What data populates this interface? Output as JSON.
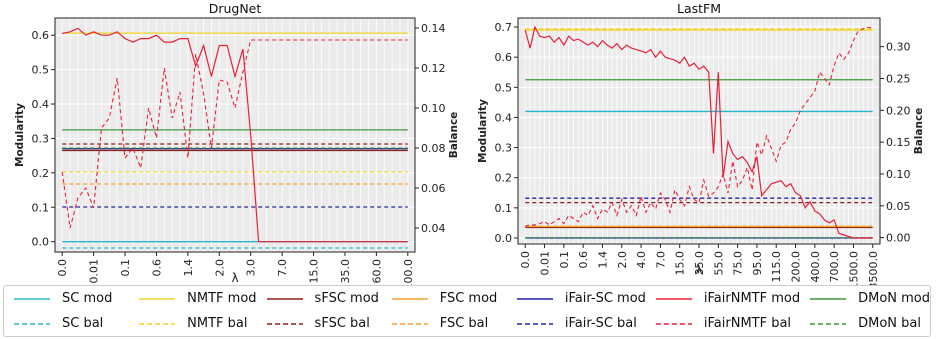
{
  "chart_data": [
    {
      "type": "line",
      "title": "DrugNet",
      "xlabel": "λ",
      "ylabel": "Modularity",
      "y2label": "Balance",
      "ylim": [
        -0.03,
        0.65
      ],
      "y2lim": [
        0.028,
        0.145
      ],
      "yticks": [
        "0.0",
        "0.1",
        "0.2",
        "0.3",
        "0.4",
        "0.5",
        "0.6"
      ],
      "y2ticks": [
        "0.04",
        "0.06",
        "0.08",
        "0.10",
        "0.12",
        "0.14"
      ],
      "xticklabels": [
        "0.0",
        "0.01",
        "0.1",
        "0.6",
        "1.4",
        "2.0",
        "3.0",
        "7.0",
        "15.0",
        "35.0",
        "60.0",
        "100.0"
      ],
      "n_points": 45,
      "grid": true,
      "modularity_const": [
        {
          "name": "SC mod",
          "value": 0.0
        },
        {
          "name": "NMTF mod",
          "value": 0.606
        },
        {
          "name": "sFSC mod",
          "value": 0.265
        },
        {
          "name": "FSC mod",
          "value": 0.27
        },
        {
          "name": "iFair-SC mod",
          "value": 0.27
        },
        {
          "name": "DMoN mod",
          "value": 0.325
        }
      ],
      "balance_const": [
        {
          "name": "SC bal",
          "value": 0.03
        },
        {
          "name": "NMTF bal",
          "value": 0.068
        },
        {
          "name": "sFSC bal",
          "value": 0.082
        },
        {
          "name": "FSC bal",
          "value": 0.062
        },
        {
          "name": "iFair-SC bal",
          "value": 0.0505
        },
        {
          "name": "DMoN bal",
          "value": 0.08
        }
      ],
      "ifairnmtf_mod": [
        0.605,
        0.61,
        0.62,
        0.6,
        0.61,
        0.6,
        0.6,
        0.61,
        0.59,
        0.58,
        0.59,
        0.59,
        0.6,
        0.58,
        0.58,
        0.59,
        0.59,
        0.51,
        0.57,
        0.48,
        0.57,
        0.57,
        0.48,
        0.56,
        0.31,
        0.0,
        0.0,
        0.0,
        0.0,
        0.0,
        0.0,
        0.0,
        0.0,
        0.0,
        0.0,
        0.0,
        0.0,
        0.0,
        0.0,
        0.0,
        0.0,
        0.0,
        0.0,
        0.0,
        0.0
      ],
      "ifairnmtf_bal": [
        0.068,
        0.04,
        0.055,
        0.06,
        0.05,
        0.09,
        0.095,
        0.115,
        0.075,
        0.08,
        0.07,
        0.1,
        0.085,
        0.12,
        0.095,
        0.108,
        0.075,
        0.127,
        0.107,
        0.08,
        0.114,
        0.113,
        0.1,
        0.118,
        0.134,
        0.134,
        0.134,
        0.134,
        0.134,
        0.134,
        0.134,
        0.134,
        0.134,
        0.134,
        0.134,
        0.134,
        0.134,
        0.134,
        0.134,
        0.134,
        0.134,
        0.134,
        0.134,
        0.134,
        0.134
      ]
    },
    {
      "type": "line",
      "title": "LastFM",
      "xlabel": "λ",
      "ylabel": "Modularity",
      "y2label": "Balance",
      "ylim": [
        -0.02,
        0.73
      ],
      "y2lim": [
        -0.01,
        0.345
      ],
      "yticks": [
        "0.0",
        "0.1",
        "0.2",
        "0.3",
        "0.4",
        "0.5",
        "0.6",
        "0.7"
      ],
      "y2ticks": [
        "0.00",
        "0.05",
        "0.10",
        "0.15",
        "0.20",
        "0.25",
        "0.30"
      ],
      "xticklabels": [
        "0.0",
        "0.01",
        "0.1",
        "0.6",
        "1.4",
        "2.0",
        "4.0",
        "7.0",
        "15.0",
        "35.0",
        "55.0",
        "75.0",
        "95.0",
        "115.0",
        "200.0",
        "400.0",
        "700.0",
        "1500.0",
        "3500.0"
      ],
      "n_points": 73,
      "grid": true,
      "modularity_const": [
        {
          "name": "SC mod",
          "value": 0.42
        },
        {
          "name": "NMTF mod",
          "value": 0.69
        },
        {
          "name": "sFSC mod",
          "value": 0.035
        },
        {
          "name": "FSC mod",
          "value": 0.038
        },
        {
          "name": "iFair-SC mod",
          "value": 0.0
        },
        {
          "name": "DMoN mod",
          "value": 0.525
        }
      ],
      "balance_const": [
        {
          "name": "SC bal",
          "value": 0.0
        },
        {
          "name": "NMTF bal",
          "value": 0.328
        },
        {
          "name": "sFSC bal",
          "value": 0.055
        },
        {
          "name": "FSC bal",
          "value": 0.018
        },
        {
          "name": "iFair-SC bal",
          "value": 0.062
        },
        {
          "name": "DMoN bal",
          "value": 0.0
        }
      ],
      "ifairnmtf_mod": [
        0.69,
        0.63,
        0.7,
        0.67,
        0.665,
        0.67,
        0.65,
        0.665,
        0.64,
        0.67,
        0.655,
        0.66,
        0.65,
        0.64,
        0.65,
        0.635,
        0.655,
        0.64,
        0.63,
        0.645,
        0.625,
        0.64,
        0.63,
        0.625,
        0.62,
        0.615,
        0.625,
        0.6,
        0.62,
        0.6,
        0.595,
        0.59,
        0.58,
        0.6,
        0.57,
        0.58,
        0.56,
        0.57,
        0.55,
        0.28,
        0.55,
        0.2,
        0.32,
        0.28,
        0.26,
        0.27,
        0.25,
        0.22,
        0.27,
        0.14,
        0.16,
        0.18,
        0.185,
        0.19,
        0.17,
        0.18,
        0.15,
        0.14,
        0.1,
        0.12,
        0.09,
        0.08,
        0.06,
        0.05,
        0.06,
        0.015,
        0.01,
        0.005,
        0.0,
        0.0,
        0.0,
        0.0,
        0.0
      ],
      "ifairnmtf_bal": [
        0.018,
        0.02,
        0.02,
        0.022,
        0.025,
        0.02,
        0.025,
        0.03,
        0.022,
        0.035,
        0.03,
        0.025,
        0.04,
        0.035,
        0.05,
        0.03,
        0.045,
        0.04,
        0.055,
        0.035,
        0.06,
        0.04,
        0.05,
        0.035,
        0.065,
        0.04,
        0.055,
        0.045,
        0.07,
        0.06,
        0.04,
        0.075,
        0.06,
        0.05,
        0.08,
        0.06,
        0.055,
        0.09,
        0.065,
        0.07,
        0.08,
        0.1,
        0.07,
        0.12,
        0.08,
        0.09,
        0.11,
        0.075,
        0.15,
        0.13,
        0.16,
        0.14,
        0.12,
        0.145,
        0.15,
        0.17,
        0.18,
        0.2,
        0.21,
        0.22,
        0.23,
        0.26,
        0.25,
        0.24,
        0.27,
        0.29,
        0.28,
        0.29,
        0.31,
        0.325,
        0.328,
        0.33,
        0.33
      ]
    }
  ],
  "legend": {
    "rows": [
      [
        {
          "label": "SC mod",
          "color": "#2ab5cf",
          "dash": false
        },
        {
          "label": "NMTF mod",
          "color": "#f2d52a",
          "dash": false
        },
        {
          "label": "sFSC mod",
          "color": "#8b1e1e",
          "dash": false
        },
        {
          "label": "FSC mod",
          "color": "#f5a02a",
          "dash": false
        },
        {
          "label": "iFair-SC mod",
          "color": "#2323a8",
          "dash": false
        },
        {
          "label": "iFairNMTF mod",
          "color": "#e8203a",
          "dash": false
        },
        {
          "label": "DMoN mod",
          "color": "#3c9a3c",
          "dash": false
        }
      ],
      [
        {
          "label": "SC bal",
          "color": "#2ab5cf",
          "dash": true
        },
        {
          "label": "NMTF bal",
          "color": "#f2d52a",
          "dash": true
        },
        {
          "label": "sFSC bal",
          "color": "#8b1e1e",
          "dash": true
        },
        {
          "label": "FSC bal",
          "color": "#f5a02a",
          "dash": true
        },
        {
          "label": "iFair-SC bal",
          "color": "#2323a8",
          "dash": true
        },
        {
          "label": "iFairNMTF bal",
          "color": "#e8203a",
          "dash": true
        },
        {
          "label": "DMoN bal",
          "color": "#3c9a3c",
          "dash": true
        }
      ]
    ]
  }
}
